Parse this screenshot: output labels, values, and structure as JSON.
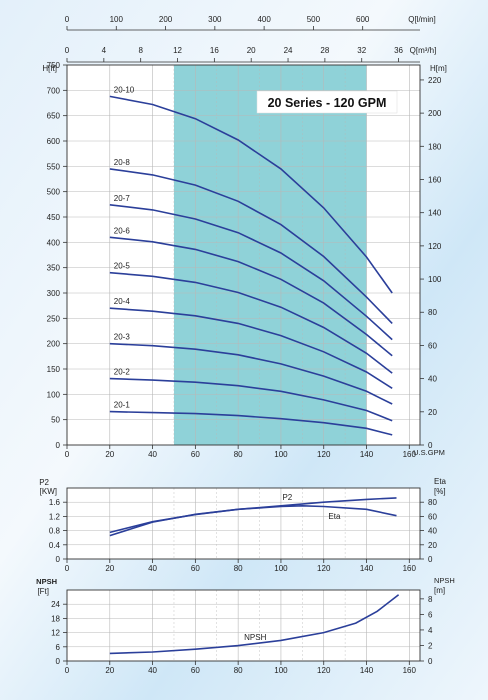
{
  "colors": {
    "curve": "#2b3f9a",
    "band": "#8fd2d8",
    "grid": "#b8b8b8",
    "frame": "#333333"
  },
  "top_axes": {
    "q_lmin": {
      "label": "Q[l/min]",
      "ticks": [
        "0",
        "100",
        "200",
        "300",
        "400",
        "500",
        "600"
      ]
    },
    "q_m3h": {
      "label": "Q[m³/h]",
      "ticks": [
        "0",
        "4",
        "8",
        "12",
        "16",
        "20",
        "24",
        "28",
        "32",
        "36"
      ]
    }
  },
  "x_axis": {
    "label": "U.S.GPM",
    "ticks": [
      "0",
      "20",
      "40",
      "60",
      "80",
      "100",
      "120",
      "140",
      "160"
    ]
  },
  "chart_data": [
    {
      "type": "line",
      "title": "20 Series - 120 GPM",
      "xlabel": "U.S.GPM",
      "ylabel_left": "H[ft]",
      "ylabel_right": "H[m]",
      "xlim": [
        0,
        165
      ],
      "ylim": [
        0,
        750
      ],
      "ylim_right": [
        0,
        229
      ],
      "x_ticks": [
        0,
        20,
        40,
        60,
        80,
        100,
        120,
        140,
        160
      ],
      "y_ticks_left": [
        0,
        50,
        100,
        150,
        200,
        250,
        300,
        350,
        400,
        450,
        500,
        550,
        600,
        650,
        700,
        750
      ],
      "y_ticks_right": [
        0,
        20,
        40,
        60,
        80,
        100,
        120,
        140,
        160,
        180,
        200,
        220
      ],
      "highlight_range_x": [
        50,
        140
      ],
      "grid": true,
      "series": [
        {
          "name": "20-1",
          "x": [
            20,
            40,
            60,
            80,
            100,
            120,
            140,
            152
          ],
          "y": [
            66,
            64,
            62,
            58,
            52,
            44,
            33,
            20
          ]
        },
        {
          "name": "20-2",
          "x": [
            20,
            40,
            60,
            80,
            100,
            120,
            140,
            152
          ],
          "y": [
            131,
            128,
            124,
            117,
            106,
            89,
            68,
            48
          ]
        },
        {
          "name": "20-3",
          "x": [
            20,
            40,
            60,
            80,
            100,
            120,
            140,
            152
          ],
          "y": [
            200,
            196,
            189,
            178,
            160,
            136,
            106,
            81
          ]
        },
        {
          "name": "20-4",
          "x": [
            20,
            40,
            60,
            80,
            100,
            120,
            140,
            152
          ],
          "y": [
            270,
            264,
            255,
            240,
            216,
            184,
            144,
            112
          ]
        },
        {
          "name": "20-5",
          "x": [
            20,
            40,
            60,
            80,
            100,
            120,
            140,
            152
          ],
          "y": [
            340,
            333,
            321,
            301,
            272,
            232,
            181,
            142
          ]
        },
        {
          "name": "20-6",
          "x": [
            20,
            40,
            60,
            80,
            100,
            120,
            140,
            152
          ],
          "y": [
            410,
            401,
            386,
            362,
            327,
            280,
            218,
            176
          ]
        },
        {
          "name": "20-7",
          "x": [
            20,
            40,
            60,
            80,
            100,
            120,
            140,
            152
          ],
          "y": [
            474,
            464,
            446,
            419,
            379,
            324,
            254,
            208
          ]
        },
        {
          "name": "20-8",
          "x": [
            20,
            40,
            60,
            80,
            100,
            120,
            140,
            152
          ],
          "y": [
            545,
            533,
            513,
            481,
            435,
            372,
            292,
            240
          ]
        },
        {
          "name": "20-10",
          "x": [
            20,
            40,
            60,
            80,
            100,
            120,
            140,
            152
          ],
          "y": [
            688,
            672,
            644,
            602,
            545,
            468,
            371,
            300
          ]
        }
      ]
    },
    {
      "type": "line",
      "xlabel": "",
      "ylabel_left": "P2 [KW]",
      "ylabel_right": "Eta [%]",
      "xlim": [
        0,
        165
      ],
      "ylim": [
        0,
        2.0
      ],
      "ylim_right": [
        0,
        100
      ],
      "x_ticks": [
        0,
        20,
        40,
        60,
        80,
        100,
        120,
        140,
        160
      ],
      "y_ticks_left": [
        "0",
        "0.4",
        "0.8",
        "1.2",
        "1.6"
      ],
      "y_ticks_right": [
        "0",
        "20",
        "40",
        "60",
        "80"
      ],
      "grid": true,
      "series": [
        {
          "name": "P2",
          "x": [
            20,
            40,
            60,
            80,
            100,
            120,
            140,
            154
          ],
          "y": [
            0.75,
            1.05,
            1.25,
            1.4,
            1.5,
            1.6,
            1.68,
            1.72
          ]
        },
        {
          "name": "Eta",
          "x": [
            20,
            40,
            60,
            80,
            100,
            110,
            120,
            140,
            154
          ],
          "y": [
            33,
            52,
            63,
            70,
            74,
            75,
            74,
            70,
            61
          ],
          "axis": "right"
        }
      ]
    },
    {
      "type": "line",
      "xlabel": "",
      "ylabel_left": "NPSH [Ft]",
      "ylabel_right": "NPSH [m]",
      "xlim": [
        0,
        165
      ],
      "ylim": [
        0,
        30
      ],
      "ylim_right": [
        0,
        9.14
      ],
      "x_ticks": [
        0,
        20,
        40,
        60,
        80,
        100,
        120,
        140,
        160
      ],
      "y_ticks_left": [
        "0",
        "6",
        "12",
        "18",
        "24"
      ],
      "y_ticks_right": [
        "0",
        "2",
        "4",
        "6",
        "8"
      ],
      "grid": true,
      "series": [
        {
          "name": "NPSH",
          "x": [
            20,
            40,
            60,
            80,
            100,
            120,
            135,
            145,
            155
          ],
          "y": [
            3.2,
            3.8,
            5,
            6.5,
            8.7,
            12,
            16,
            21,
            28
          ]
        }
      ]
    }
  ]
}
